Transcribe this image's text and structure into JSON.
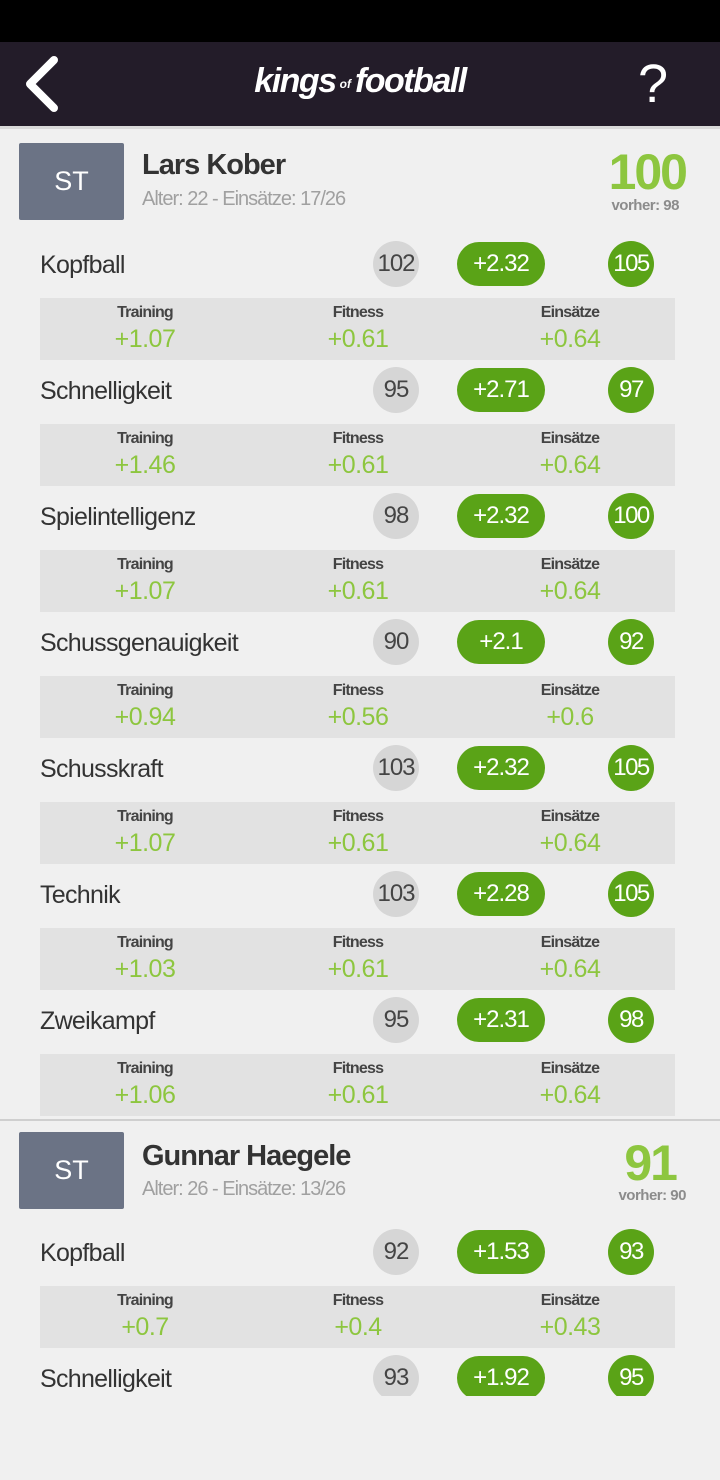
{
  "header": {
    "logo_kings": "kings",
    "logo_of": "of",
    "logo_football": "football",
    "back_icon": "chevron-left-icon",
    "help_label": "?"
  },
  "players": [
    {
      "position": "ST",
      "name": "Lars Kober",
      "meta": "Alter: 22 - Einsätze: 17/26",
      "overall": "100",
      "previous": "vorher: 98",
      "attributes": [
        {
          "name": "Kopfball",
          "old": "102",
          "gain": "+2.32",
          "new": "105",
          "training": "+1.07",
          "fitness": "+0.61",
          "einsaetze": "+0.64"
        },
        {
          "name": "Schnelligkeit",
          "old": "95",
          "gain": "+2.71",
          "new": "97",
          "training": "+1.46",
          "fitness": "+0.61",
          "einsaetze": "+0.64"
        },
        {
          "name": "Spielintelligenz",
          "old": "98",
          "gain": "+2.32",
          "new": "100",
          "training": "+1.07",
          "fitness": "+0.61",
          "einsaetze": "+0.64"
        },
        {
          "name": "Schussgenauigkeit",
          "old": "90",
          "gain": "+2.1",
          "new": "92",
          "training": "+0.94",
          "fitness": "+0.56",
          "einsaetze": "+0.6"
        },
        {
          "name": "Schusskraft",
          "old": "103",
          "gain": "+2.32",
          "new": "105",
          "training": "+1.07",
          "fitness": "+0.61",
          "einsaetze": "+0.64"
        },
        {
          "name": "Technik",
          "old": "103",
          "gain": "+2.28",
          "new": "105",
          "training": "+1.03",
          "fitness": "+0.61",
          "einsaetze": "+0.64"
        },
        {
          "name": "Zweikampf",
          "old": "95",
          "gain": "+2.31",
          "new": "98",
          "training": "+1.06",
          "fitness": "+0.61",
          "einsaetze": "+0.64"
        }
      ]
    },
    {
      "position": "ST",
      "name": "Gunnar Haegele",
      "meta": "Alter: 26 - Einsätze: 13/26",
      "overall": "91",
      "previous": "vorher: 90",
      "attributes": [
        {
          "name": "Kopfball",
          "old": "92",
          "gain": "+1.53",
          "new": "93",
          "training": "+0.7",
          "fitness": "+0.4",
          "einsaetze": "+0.43"
        },
        {
          "name": "Schnelligkeit",
          "old": "93",
          "gain": "+1.92",
          "new": "95",
          "training": "",
          "fitness": "",
          "einsaetze": ""
        }
      ]
    }
  ],
  "labels": {
    "training": "Training",
    "fitness": "Fitness",
    "einsaetze": "Einsätze"
  },
  "colors": {
    "header_bg": "#231c29",
    "accent_green": "#5aa317",
    "value_green": "#8dc63f",
    "position_box": "#6b7385"
  }
}
